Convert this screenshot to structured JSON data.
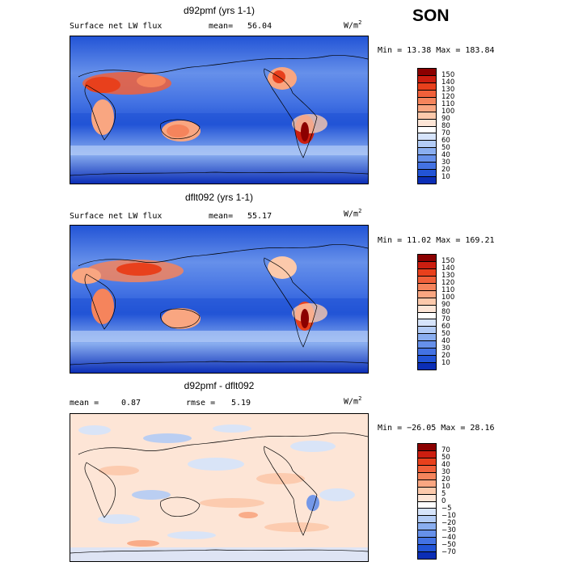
{
  "season": "SON",
  "units": "W/m",
  "units_sup": "2",
  "panels": [
    {
      "title": "d92pmf (yrs 1-1)",
      "left_label": "Surface net LW flux",
      "stat1_label": "mean=",
      "stat1_value": "56.04",
      "minmax": "Min =  13.38 Max = 183.84",
      "colorbar_ticks": [
        "150",
        "140",
        "130",
        "120",
        "110",
        "100",
        "90",
        "80",
        "70",
        "60",
        "50",
        "40",
        "30",
        "20",
        "10"
      ],
      "colorbar_colors": [
        "#8b0000",
        "#cc1e10",
        "#e8401c",
        "#f0603a",
        "#f5845c",
        "#f9a681",
        "#fcc9ab",
        "#fde5d6",
        "#ffffff",
        "#d6e4fb",
        "#b3ccf6",
        "#8aaef0",
        "#6690ea",
        "#4372e3",
        "#2254d6",
        "#0b2eb6"
      ],
      "chart_data": {
        "type": "heatmap",
        "title": "d92pmf (yrs 1-1)",
        "variable": "Surface net LW flux",
        "mean": 56.04,
        "min": 13.38,
        "max": 183.84,
        "levels": [
          10,
          20,
          30,
          40,
          50,
          60,
          70,
          80,
          90,
          100,
          110,
          120,
          130,
          140,
          150
        ]
      }
    },
    {
      "title": "dflt092 (yrs 1-1)",
      "left_label": "Surface net LW flux",
      "stat1_label": "mean=",
      "stat1_value": "55.17",
      "minmax": "Min =  11.02 Max = 169.21",
      "colorbar_ticks": [
        "150",
        "140",
        "130",
        "120",
        "110",
        "100",
        "90",
        "80",
        "70",
        "60",
        "50",
        "40",
        "30",
        "20",
        "10"
      ],
      "colorbar_colors": [
        "#8b0000",
        "#cc1e10",
        "#e8401c",
        "#f0603a",
        "#f5845c",
        "#f9a681",
        "#fcc9ab",
        "#fde5d6",
        "#ffffff",
        "#d6e4fb",
        "#b3ccf6",
        "#8aaef0",
        "#6690ea",
        "#4372e3",
        "#2254d6",
        "#0b2eb6"
      ],
      "chart_data": {
        "type": "heatmap",
        "title": "dflt092 (yrs 1-1)",
        "variable": "Surface net LW flux",
        "mean": 55.17,
        "min": 11.02,
        "max": 169.21,
        "levels": [
          10,
          20,
          30,
          40,
          50,
          60,
          70,
          80,
          90,
          100,
          110,
          120,
          130,
          140,
          150
        ]
      }
    },
    {
      "title": "d92pmf - dflt092",
      "left_label": "mean =",
      "stat1_label": "",
      "stat1_value": "0.87",
      "rmse_label": "rmse =",
      "rmse_value": "5.19",
      "minmax": "Min = −26.05 Max =  28.16",
      "colorbar_ticks": [
        "70",
        "50",
        "40",
        "30",
        "20",
        "10",
        "5",
        "0",
        "−5",
        "−10",
        "−20",
        "−30",
        "−40",
        "−50",
        "−70"
      ],
      "colorbar_colors": [
        "#8b0000",
        "#cc1e10",
        "#e8401c",
        "#f0603a",
        "#f5845c",
        "#f9a681",
        "#fcc9ab",
        "#fde5d6",
        "#ffffff",
        "#d6e4fb",
        "#b3ccf6",
        "#8aaef0",
        "#6690ea",
        "#4372e3",
        "#2254d6",
        "#0b2eb6"
      ],
      "chart_data": {
        "type": "heatmap",
        "title": "d92pmf - dflt092",
        "mean": 0.87,
        "rmse": 5.19,
        "min": -26.05,
        "max": 28.16,
        "levels": [
          -70,
          -50,
          -40,
          -30,
          -20,
          -10,
          -5,
          0,
          5,
          10,
          20,
          30,
          40,
          50,
          70
        ]
      }
    }
  ]
}
